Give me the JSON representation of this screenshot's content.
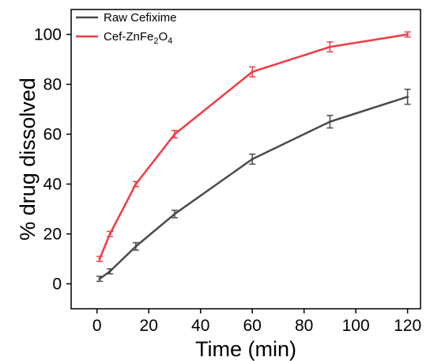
{
  "chart_data": {
    "type": "line",
    "xlabel": "Time (min)",
    "ylabel": "% drug dissolved",
    "xlim": [
      -10,
      125
    ],
    "ylim": [
      -10,
      110
    ],
    "xticks": [
      0,
      20,
      40,
      60,
      80,
      100,
      120
    ],
    "yticks": [
      0,
      20,
      40,
      60,
      80,
      100
    ],
    "legend_position": "top-left",
    "series": [
      {
        "name": "Raw Cefixime",
        "color": "#4a4a4a",
        "x": [
          1,
          5,
          15,
          30,
          60,
          90,
          120
        ],
        "y": [
          2,
          5,
          15,
          28,
          50,
          65,
          75
        ],
        "error": [
          1,
          1,
          1.5,
          1.5,
          2,
          2.5,
          3
        ]
      },
      {
        "name": "Cef-ZnFe",
        "name_parts": [
          "Cef-ZnFe",
          "2",
          "O",
          "4"
        ],
        "color": "#f03c46",
        "x": [
          1,
          5,
          15,
          30,
          60,
          90,
          120
        ],
        "y": [
          10,
          20,
          40,
          60,
          85,
          95,
          100
        ],
        "error": [
          1,
          1,
          1,
          1.5,
          2,
          2,
          1
        ]
      }
    ]
  }
}
